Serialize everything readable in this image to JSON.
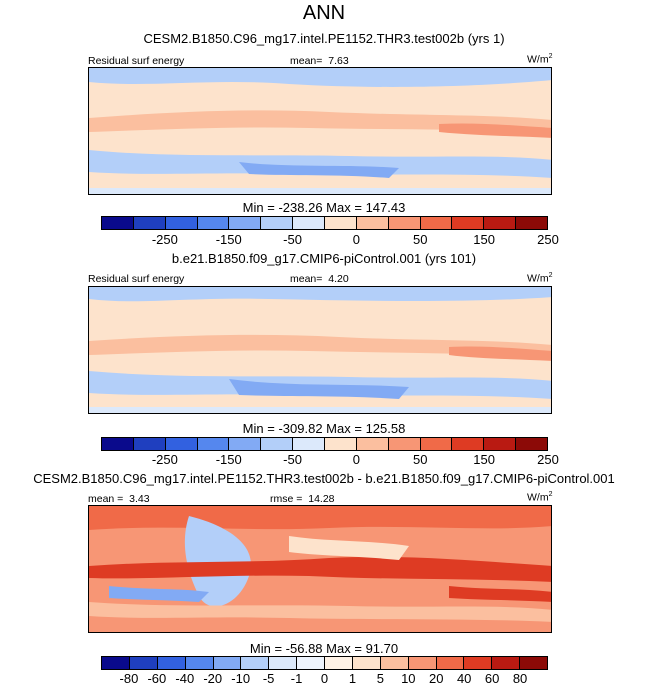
{
  "title": "ANN",
  "palette": [
    "#0a0a8c",
    "#1f3fbf",
    "#3261e0",
    "#5587ee",
    "#82aaf4",
    "#b3cff9",
    "#dce9fb",
    "#fde3cc",
    "#fbbf9f",
    "#f79675",
    "#f06a48",
    "#de3b23",
    "#b91a12",
    "#8c0a07"
  ],
  "land": {
    "color": "#000000",
    "style": "continent-outline"
  },
  "chart_data": [
    {
      "type": "heatmap",
      "case": "CESM2.B1850.C96_mg17.intel.PE1152.THR3.test002b (yrs 1)",
      "variable": "Residual surf energy",
      "stat_label": "mean=",
      "stat_value": "7.63",
      "units": "W/m",
      "units_exp": "2",
      "min_label": "Min =",
      "min_value": "-238.26",
      "max_label": "Max =",
      "max_value": "147.43",
      "levels": [
        "-250",
        "-150",
        "-50",
        "0",
        "50",
        "150",
        "250"
      ]
    },
    {
      "type": "heatmap",
      "case": "b.e21.B1850.f09_g17.CMIP6-piControl.001 (yrs 101)",
      "variable": "Residual surf energy",
      "stat_label": "mean=",
      "stat_value": "4.20",
      "units": "W/m",
      "units_exp": "2",
      "min_label": "Min =",
      "min_value": "-309.82",
      "max_label": "Max =",
      "max_value": "125.58",
      "levels": [
        "-250",
        "-150",
        "-50",
        "0",
        "50",
        "150",
        "250"
      ]
    },
    {
      "type": "heatmap",
      "case": "CESM2.B1850.C96_mg17.intel.PE1152.THR3.test002b - b.e21.B1850.f09_g17.CMIP6-piControl.001",
      "mean_label": "mean =",
      "mean_value": "3.43",
      "rmse_label": "rmse =",
      "rmse_value": "14.28",
      "units": "W/m",
      "units_exp": "2",
      "min_label": "Min =",
      "min_value": "-56.88",
      "max_label": "Max =",
      "max_value": "91.70",
      "levels": [
        "-80",
        "-60",
        "-40",
        "-20",
        "-10",
        "-5",
        "-1",
        "0",
        "1",
        "5",
        "10",
        "20",
        "40",
        "60",
        "80"
      ]
    }
  ]
}
